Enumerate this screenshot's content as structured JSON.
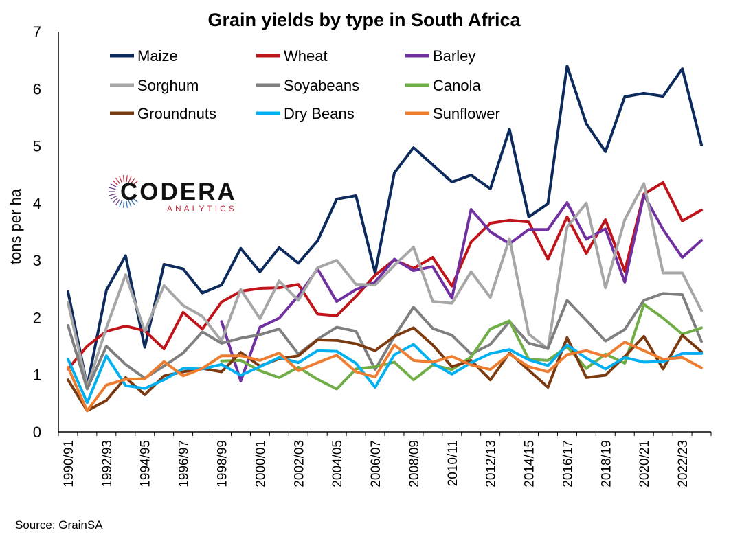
{
  "source": "Source: GrainSA",
  "logo": {
    "word": "CODERA",
    "sub": "ANALYTICS",
    "colors": [
      "#c0283e",
      "#6a3a8c",
      "#2c6fb5"
    ]
  },
  "chart_data": {
    "type": "line",
    "title": "Grain yields by type in South Africa",
    "xlabel": "",
    "ylabel": "tons per ha",
    "ylim": [
      0,
      7
    ],
    "yticks": [
      0,
      1,
      2,
      3,
      4,
      5,
      6,
      7
    ],
    "grid": false,
    "legend_position": "top-left",
    "x": [
      "1990/91",
      "1991/92",
      "1992/93",
      "1993/94",
      "1994/95",
      "1995/96",
      "1996/97",
      "1997/98",
      "1998/99",
      "1999/00",
      "2000/01",
      "2001/02",
      "2002/03",
      "2003/04",
      "2004/05",
      "2005/06",
      "2006/07",
      "2007/08",
      "2008/09",
      "2009/10",
      "2010/11",
      "2011/12",
      "2012/13",
      "2013/14",
      "2014/15",
      "2015/16",
      "2016/17",
      "2017/18",
      "2018/19",
      "2019/20",
      "2020/21",
      "2021/22",
      "2022/23",
      "2023/24"
    ],
    "xtick_labels": [
      "1990/91",
      "1992/93",
      "1994/95",
      "1996/97",
      "1998/99",
      "2000/01",
      "2002/03",
      "2004/05",
      "2006/07",
      "2008/09",
      "2010/11",
      "2012/13",
      "2014/15",
      "2016/17",
      "2018/19",
      "2020/21",
      "2022/23"
    ],
    "series": [
      {
        "name": "Maize",
        "color": "#0d2a5c",
        "values": [
          2.45,
          0.8,
          2.48,
          3.08,
          1.48,
          2.93,
          2.85,
          2.43,
          2.57,
          3.21,
          2.8,
          3.22,
          2.95,
          3.34,
          4.07,
          4.13,
          2.78,
          4.53,
          4.97,
          4.67,
          4.37,
          4.49,
          4.25,
          5.29,
          3.76,
          3.99,
          6.4,
          5.39,
          4.9,
          5.86,
          5.92,
          5.87,
          6.35,
          5.02
        ]
      },
      {
        "name": "Wheat",
        "color": "#c0141b",
        "values": [
          1.1,
          1.5,
          1.76,
          1.85,
          1.77,
          1.45,
          2.09,
          1.8,
          2.27,
          2.46,
          2.51,
          2.52,
          2.58,
          2.06,
          2.03,
          2.37,
          2.74,
          3.01,
          2.86,
          3.05,
          2.55,
          3.32,
          3.65,
          3.7,
          3.67,
          3.02,
          3.76,
          3.12,
          3.71,
          2.81,
          4.16,
          4.36,
          3.69,
          3.88
        ]
      },
      {
        "name": "Barley",
        "color": "#7030a0",
        "values": [
          null,
          null,
          null,
          null,
          null,
          null,
          null,
          null,
          1.93,
          0.89,
          1.83,
          1.99,
          2.38,
          2.85,
          2.28,
          2.49,
          2.62,
          3.02,
          2.82,
          2.89,
          2.34,
          3.89,
          3.5,
          3.29,
          3.54,
          3.54,
          4.01,
          3.37,
          3.55,
          2.62,
          4.14,
          3.54,
          3.05,
          3.35
        ]
      },
      {
        "name": "Sorghum",
        "color": "#a6a6a6",
        "values": [
          2.26,
          0.79,
          1.82,
          2.75,
          1.76,
          2.56,
          2.21,
          2.02,
          1.59,
          2.49,
          1.98,
          2.64,
          2.3,
          2.87,
          3.0,
          2.58,
          2.57,
          2.91,
          3.23,
          2.28,
          2.25,
          2.8,
          2.35,
          3.38,
          1.71,
          1.45,
          3.58,
          4.0,
          2.52,
          3.71,
          4.34,
          2.78,
          2.78,
          2.12
        ]
      },
      {
        "name": "Soyabeans",
        "color": "#7f7f7f",
        "values": [
          1.86,
          0.75,
          1.5,
          1.18,
          0.94,
          1.15,
          1.38,
          1.75,
          1.55,
          1.64,
          1.7,
          1.8,
          1.36,
          1.62,
          1.83,
          1.76,
          1.09,
          1.67,
          2.18,
          1.81,
          1.69,
          1.36,
          1.53,
          1.93,
          1.55,
          1.46,
          2.3,
          1.95,
          1.59,
          1.79,
          2.3,
          2.42,
          2.4,
          1.58
        ]
      },
      {
        "name": "Canola",
        "color": "#70ad47",
        "values": [
          null,
          null,
          null,
          null,
          null,
          null,
          null,
          null,
          1.24,
          1.25,
          1.07,
          0.95,
          1.13,
          0.92,
          0.75,
          1.1,
          1.14,
          1.22,
          0.91,
          1.17,
          1.09,
          1.31,
          1.8,
          1.94,
          1.27,
          1.25,
          1.49,
          1.11,
          1.36,
          1.2,
          2.23,
          1.99,
          1.71,
          1.82
        ]
      },
      {
        "name": "Groundnuts",
        "color": "#7b3a10",
        "values": [
          0.91,
          0.37,
          0.55,
          0.95,
          0.65,
          0.98,
          1.05,
          1.11,
          1.05,
          1.39,
          1.15,
          1.28,
          1.33,
          1.61,
          1.6,
          1.54,
          1.42,
          1.67,
          1.82,
          1.52,
          1.14,
          1.25,
          0.91,
          1.38,
          1.08,
          0.78,
          1.65,
          0.95,
          0.99,
          1.32,
          1.67,
          1.1,
          1.69,
          1.4
        ]
      },
      {
        "name": "Dry Beans",
        "color": "#00b0f0",
        "values": [
          1.27,
          0.51,
          1.33,
          0.81,
          0.76,
          0.91,
          1.11,
          1.1,
          1.18,
          0.99,
          1.14,
          1.3,
          1.21,
          1.42,
          1.41,
          1.2,
          0.78,
          1.35,
          1.53,
          1.2,
          1.01,
          1.21,
          1.37,
          1.44,
          1.26,
          1.16,
          1.52,
          1.29,
          1.1,
          1.3,
          1.22,
          1.23,
          1.37,
          1.37
        ]
      },
      {
        "name": "Sunflower",
        "color": "#ed7d31",
        "values": [
          1.13,
          0.37,
          0.82,
          0.92,
          0.93,
          1.23,
          0.98,
          1.11,
          1.33,
          1.33,
          1.25,
          1.38,
          1.07,
          1.21,
          1.34,
          1.05,
          0.96,
          1.52,
          1.25,
          1.22,
          1.32,
          1.17,
          1.09,
          1.36,
          1.14,
          1.05,
          1.35,
          1.42,
          1.32,
          1.57,
          1.42,
          1.27,
          1.3,
          1.12
        ]
      }
    ]
  }
}
